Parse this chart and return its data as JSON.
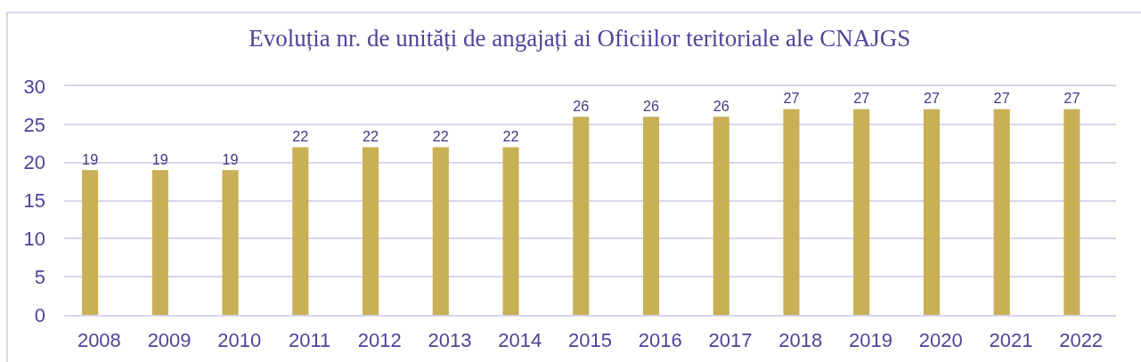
{
  "chart_data": {
    "type": "bar",
    "title": "Evoluția nr. de unități de angajați ai Oficiilor teritoriale ale CNAJGS",
    "categories": [
      "2008",
      "2009",
      "2010",
      "2011",
      "2012",
      "2013",
      "2014",
      "2015",
      "2016",
      "2017",
      "2018",
      "2019",
      "2020",
      "2021",
      "2022"
    ],
    "values": [
      19,
      19,
      19,
      22,
      22,
      22,
      22,
      26,
      26,
      26,
      27,
      27,
      27,
      27,
      27
    ],
    "color": "#c9af55",
    "ylim": [
      0,
      30
    ],
    "yticks": [
      0,
      5,
      10,
      15,
      20,
      25,
      30
    ],
    "grid": "y",
    "data_labels": true
  }
}
